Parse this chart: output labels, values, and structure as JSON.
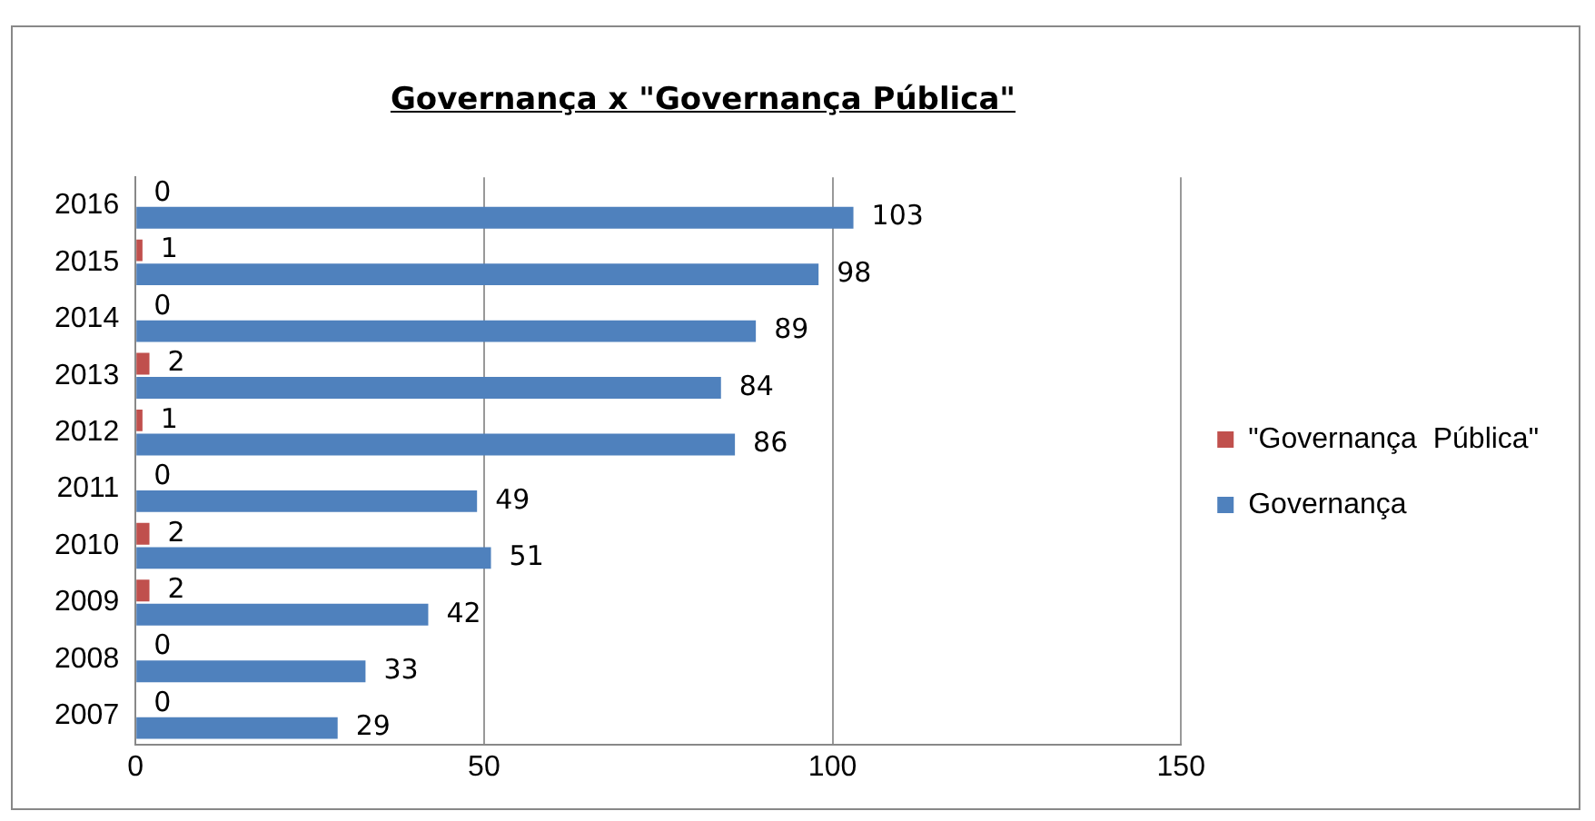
{
  "chart_data": {
    "type": "bar",
    "orientation": "horizontal",
    "title": "Governança x \"Governança Pública\"",
    "categories": [
      "2016",
      "2015",
      "2014",
      "2013",
      "2012",
      "2011",
      "2010",
      "2009",
      "2008",
      "2007"
    ],
    "series": [
      {
        "name": "\"Governança  Pública\"",
        "color": "#c0504d",
        "values": [
          0,
          1,
          0,
          2,
          1,
          0,
          2,
          2,
          0,
          0
        ]
      },
      {
        "name": "Governança",
        "color": "#4f81bd",
        "values": [
          103,
          98,
          89,
          84,
          86,
          49,
          51,
          42,
          33,
          29
        ]
      }
    ],
    "xlim": [
      0,
      150
    ],
    "xticks": [
      0,
      50,
      100,
      150
    ],
    "grid": "x",
    "legend": "right",
    "data_labels": true
  }
}
